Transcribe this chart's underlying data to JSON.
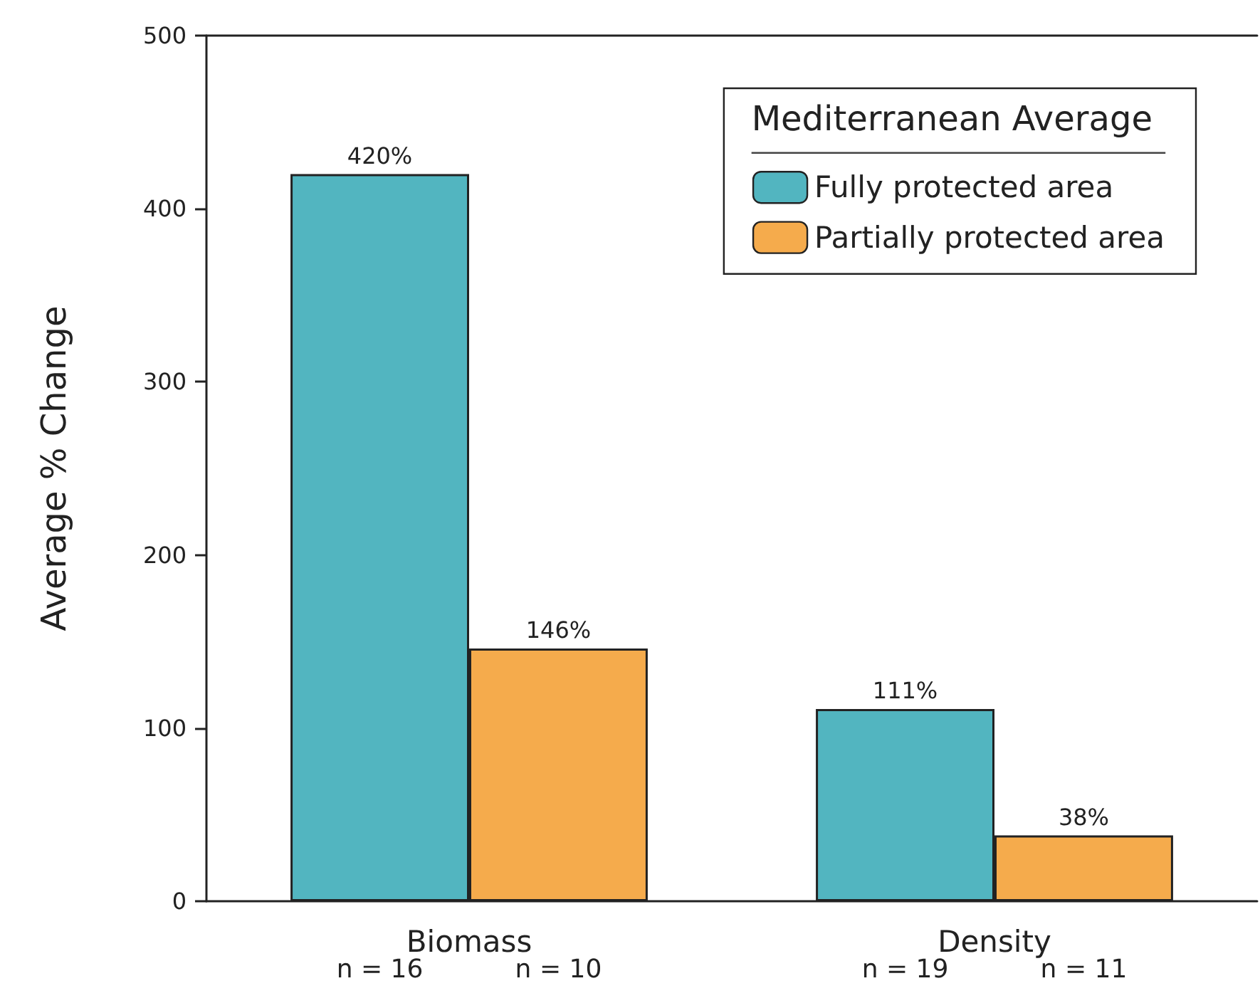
{
  "chart_data": {
    "type": "bar",
    "ylabel": "Average % Change",
    "legend_title": "Mediterranean Average",
    "categories": [
      "Biomass",
      "Density"
    ],
    "series": [
      {
        "name": "Fully protected area",
        "color": "#52b5c0",
        "values": [
          420,
          111
        ],
        "value_labels": [
          "420%",
          "111%"
        ]
      },
      {
        "name": "Partially protected area",
        "color": "#f5ab4c",
        "values": [
          146,
          38
        ],
        "value_labels": [
          "146%",
          "38%"
        ]
      }
    ],
    "ylim": [
      0,
      500
    ],
    "yticks": [
      0,
      100,
      200,
      300,
      400,
      500
    ],
    "grid": false,
    "legend": "top right",
    "annotations": [
      "n = 16",
      "n = 10",
      "n = 19",
      "n = 11"
    ]
  }
}
